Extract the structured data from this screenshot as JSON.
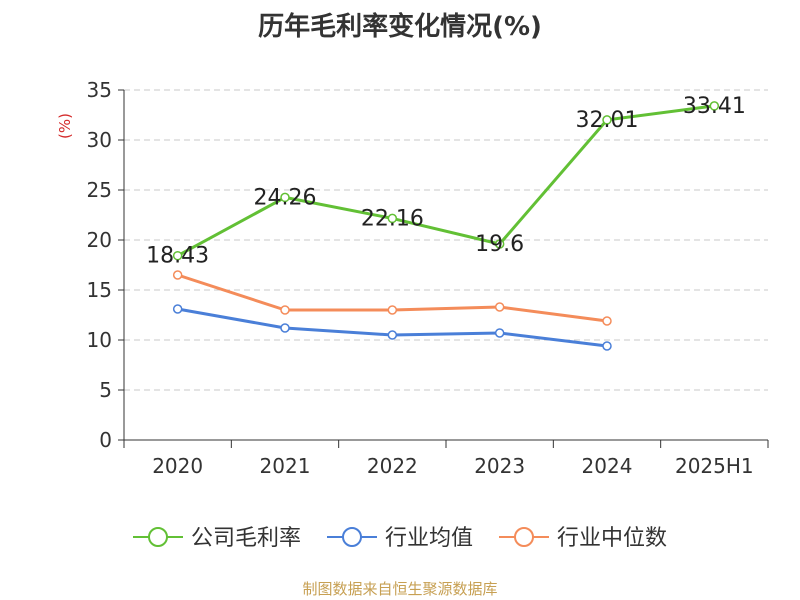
{
  "title": "历年毛利率变化情况(%)",
  "source": "制图数据来自恒生聚源数据库",
  "chart_data": {
    "type": "line",
    "title": "历年毛利率变化情况(%)",
    "ylabel": "(%)",
    "xlabel": "",
    "categories": [
      "2020",
      "2021",
      "2022",
      "2023",
      "2024",
      "2025H1"
    ],
    "ylim": [
      0,
      35
    ],
    "yticks": [
      0,
      5,
      10,
      15,
      20,
      25,
      30,
      35
    ],
    "grid": "horizontal-dashed",
    "legend": "bottom",
    "series": [
      {
        "name": "公司毛利率",
        "color": "#62c035",
        "labeled": true,
        "values": [
          18.43,
          24.26,
          22.16,
          19.6,
          32.01,
          33.41
        ]
      },
      {
        "name": "行业均值",
        "color": "#4a7fd8",
        "labeled": false,
        "values": [
          13.1,
          11.2,
          10.5,
          10.7,
          9.4,
          null
        ]
      },
      {
        "name": "行业中位数",
        "color": "#f48c5a",
        "labeled": false,
        "values": [
          16.5,
          13.0,
          13.0,
          13.3,
          11.9,
          null
        ]
      }
    ]
  }
}
